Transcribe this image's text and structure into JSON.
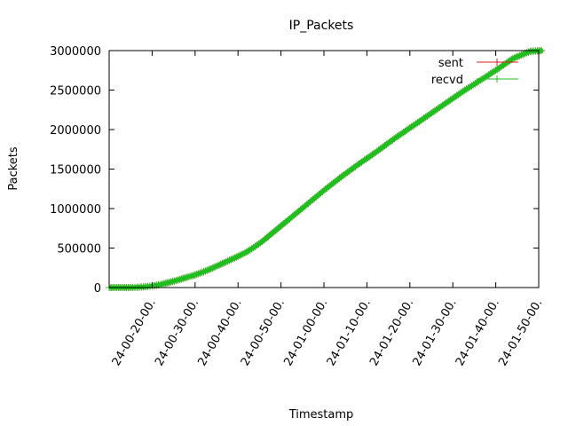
{
  "chart_data": {
    "type": "line",
    "title": "IP_Packets",
    "xlabel": "Timestamp",
    "ylabel": "Packets",
    "ylim": [
      0,
      3000000
    ],
    "y_ticks": [
      "0",
      "500000",
      "1000000",
      "1500000",
      "2000000",
      "2500000",
      "3000000"
    ],
    "x_tick_labels": [
      "24-00-20-00.",
      "24-00-30-00.",
      "24-00-40-00.",
      "24-00-50-00.",
      "24-01-00-00.",
      "24-01-10-00.",
      "24-01-20-00.",
      "24-01-30-00.",
      "24-01-40-00.",
      "24-01-50-00."
    ],
    "x_range_minutes": [
      15,
      65
    ],
    "x_tick_minutes": [
      20,
      25,
      30,
      35,
      40,
      45,
      50,
      55,
      60,
      65
    ],
    "grid": false,
    "legend_position": "top-right",
    "series": [
      {
        "name": "sent",
        "color": "#e41a1c",
        "x_minutes": [
          15,
          17,
          18,
          19,
          20,
          21,
          22,
          23,
          24,
          25,
          26,
          27,
          28,
          29,
          30,
          31,
          32,
          33,
          34,
          35,
          36,
          38,
          40,
          42,
          44,
          46,
          48,
          50,
          52,
          54,
          56,
          58,
          60,
          62,
          64,
          65.5
        ],
        "values": [
          0,
          0,
          2000,
          8000,
          20000,
          40000,
          65000,
          95000,
          128000,
          160000,
          200000,
          245000,
          295000,
          345000,
          395000,
          450000,
          520000,
          600000,
          690000,
          780000,
          870000,
          1050000,
          1230000,
          1400000,
          1560000,
          1710000,
          1870000,
          2020000,
          2170000,
          2320000,
          2470000,
          2610000,
          2750000,
          2900000,
          2990000,
          3000000
        ]
      },
      {
        "name": "recvd",
        "color": "#1fbf1f",
        "x_minutes": [
          15,
          17,
          18,
          19,
          20,
          21,
          22,
          23,
          24,
          25,
          26,
          27,
          28,
          29,
          30,
          31,
          32,
          33,
          34,
          35,
          36,
          38,
          40,
          42,
          44,
          46,
          48,
          50,
          52,
          54,
          56,
          58,
          60,
          62,
          64,
          65.5
        ],
        "values": [
          0,
          0,
          2000,
          8000,
          20000,
          40000,
          65000,
          95000,
          128000,
          160000,
          200000,
          245000,
          295000,
          345000,
          395000,
          450000,
          520000,
          600000,
          690000,
          780000,
          870000,
          1050000,
          1230000,
          1400000,
          1560000,
          1710000,
          1870000,
          2020000,
          2170000,
          2320000,
          2470000,
          2610000,
          2750000,
          2900000,
          2990000,
          3000000
        ]
      }
    ]
  }
}
